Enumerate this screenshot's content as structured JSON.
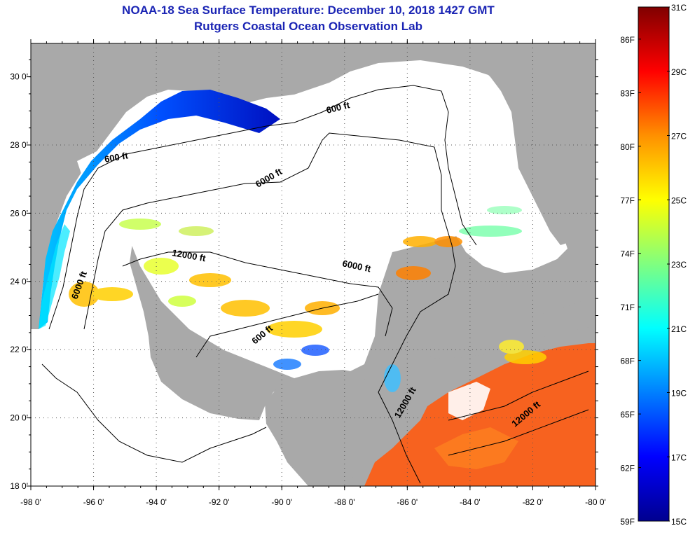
{
  "header": {
    "title": "NOAA-18 Sea Surface Temperature:  December 10, 2018 1427 GMT",
    "subtitle": "Rutgers Coastal Ocean Observation Lab"
  },
  "map": {
    "lat_labels": [
      "30 0'",
      "28 0'",
      "26 0'",
      "24 0'",
      "22 0'",
      "20 0'",
      "18 0'"
    ],
    "lon_labels": [
      "-98 0'",
      "-96 0'",
      "-94 0'",
      "-92 0'",
      "-90 0'",
      "-88 0'",
      "-86 0'",
      "-84 0'",
      "-82 0'",
      "-80 0'"
    ],
    "land_color": "#a9a9a9",
    "ocean_cloud_color": "#ffffff",
    "contour_labels": [
      {
        "text": "600 ft"
      },
      {
        "text": "600 ft"
      },
      {
        "text": "6000 ft"
      },
      {
        "text": "12000 ft"
      },
      {
        "text": "6000 ft"
      },
      {
        "text": "6000 ft"
      },
      {
        "text": "600 ft"
      },
      {
        "text": "12000 ft"
      },
      {
        "text": "12000 ft"
      }
    ]
  },
  "colorbar": {
    "fahrenheit_labels": [
      "86F",
      "83F",
      "80F",
      "77F",
      "74F",
      "71F",
      "68F",
      "65F",
      "62F",
      "59F"
    ],
    "celsius_labels": [
      "31C",
      "29C",
      "27C",
      "25C",
      "23C",
      "21C",
      "19C",
      "17C",
      "15C"
    ],
    "range_c": [
      15,
      31
    ],
    "colors": [
      "#00008f",
      "#0000ff",
      "#00ffff",
      "#ffff00",
      "#ff8000",
      "#ff0000",
      "#800000"
    ]
  }
}
